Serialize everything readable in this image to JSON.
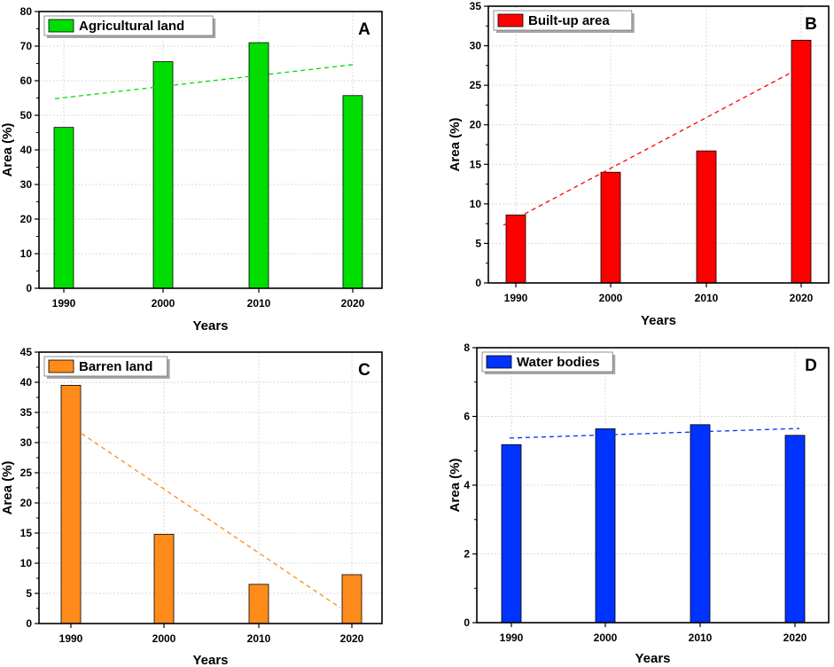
{
  "chart_data": [
    {
      "type": "bar",
      "panel_label": "A",
      "legend": "Agricultural land",
      "color": "#00dd00",
      "categories": [
        "1990",
        "2000",
        "2010",
        "2020"
      ],
      "values": [
        46.5,
        65.5,
        71.0,
        55.7
      ],
      "trendline": [
        54.8,
        64.7
      ],
      "xlabel": "Years",
      "ylabel": "Area (%)",
      "ylim": [
        0,
        80
      ],
      "yticks": [
        0,
        10,
        20,
        30,
        40,
        50,
        60,
        70,
        80
      ],
      "grid": true,
      "legend_position": "top-left"
    },
    {
      "type": "bar",
      "panel_label": "B",
      "legend": "Built-up area",
      "color": "#ff0000",
      "categories": [
        "1990",
        "2000",
        "2010",
        "2020"
      ],
      "values": [
        8.6,
        14.0,
        16.7,
        30.7
      ],
      "trendline": [
        7.3,
        27.4
      ],
      "xlabel": "Years",
      "ylabel": "Area (%)",
      "ylim": [
        0,
        35
      ],
      "yticks": [
        0,
        5,
        10,
        15,
        20,
        25,
        30,
        35
      ],
      "grid": true,
      "legend_position": "top-left"
    },
    {
      "type": "bar",
      "panel_label": "C",
      "legend": "Barren land",
      "color": "#ff8c1a",
      "categories": [
        "1990",
        "2000",
        "2010",
        "2020"
      ],
      "values": [
        39.5,
        14.8,
        6.5,
        8.1
      ],
      "trendline": [
        31.5,
        2.6
      ],
      "xlabel": "Years",
      "ylabel": "Area (%)",
      "ylim": [
        0,
        45
      ],
      "yticks": [
        0,
        5,
        10,
        15,
        20,
        25,
        30,
        35,
        40,
        45
      ],
      "grid": true,
      "legend_position": "top-left"
    },
    {
      "type": "bar",
      "panel_label": "D",
      "legend": "Water bodies",
      "color": "#0033ff",
      "categories": [
        "1990",
        "2000",
        "2010",
        "2020"
      ],
      "values": [
        5.18,
        5.64,
        5.76,
        5.45
      ],
      "trendline": [
        5.37,
        5.65
      ],
      "xlabel": "Years",
      "ylabel": "Area (%)",
      "ylim": [
        0,
        8
      ],
      "yticks": [
        0,
        2,
        4,
        6,
        8
      ],
      "grid": true,
      "legend_position": "top-left"
    }
  ]
}
